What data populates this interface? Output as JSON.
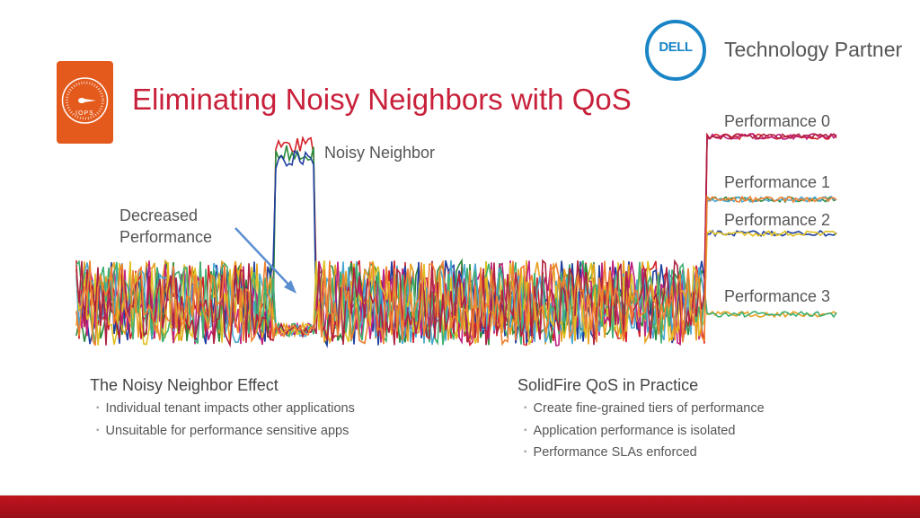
{
  "header": {
    "title": "Eliminating Noisy Neighbors with QoS",
    "icon_label": "IOPS",
    "partner_logo_text": "DELL",
    "partner_text": "Technology Partner"
  },
  "chart": {
    "noisy_label": "Noisy Neighbor",
    "decreased_label_1": "Decreased",
    "decreased_label_2": "Performance",
    "tiers": [
      "Performance 0",
      "Performance 1",
      "Performance 2",
      "Performance 3"
    ],
    "line_colors": [
      "#d4202a",
      "#2a8a3a",
      "#1f3f9f",
      "#e8a020",
      "#c02080",
      "#4aa8d0",
      "#e0c020",
      "#40b070",
      "#b02040",
      "#f08030"
    ]
  },
  "left_section": {
    "heading": "The Noisy Neighbor Effect",
    "bullets": [
      "Individual tenant impacts other applications",
      "Unsuitable for performance sensitive apps"
    ]
  },
  "right_section": {
    "heading": "SolidFire QoS in Practice",
    "bullets": [
      "Create fine-grained tiers of performance",
      "Application performance is isolated",
      "Performance SLAs enforced"
    ]
  },
  "colors": {
    "accent": "#c8203a",
    "orange": "#e35a1c",
    "dell_blue": "#1a85c6",
    "footer": "#c0141e"
  }
}
